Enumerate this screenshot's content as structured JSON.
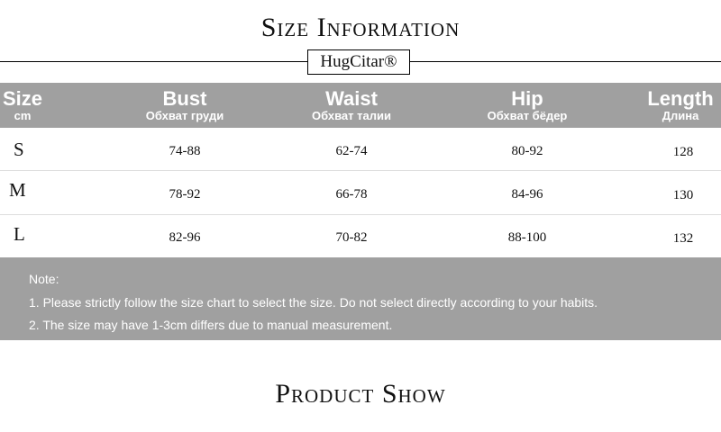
{
  "title": "Size Information",
  "brand": "HugCitar®",
  "table": {
    "headers": [
      {
        "main": "Size",
        "sub": "cm"
      },
      {
        "main": "Bust",
        "sub": "Обхват груди"
      },
      {
        "main": "Waist",
        "sub": "Обхват талии"
      },
      {
        "main": "Hip",
        "sub": "Обхват бёдер"
      },
      {
        "main": "Length",
        "sub": "Длина"
      }
    ],
    "rows": [
      {
        "size": "S",
        "bust": "74-88",
        "waist": "62-74",
        "hip": "80-92",
        "length": "128"
      },
      {
        "size": "M",
        "bust": "78-92",
        "waist": "66-78",
        "hip": "84-96",
        "length": "130"
      },
      {
        "size": "L",
        "bust": "82-96",
        "waist": "70-82",
        "hip": "88-100",
        "length": "132"
      }
    ]
  },
  "note": {
    "label": "Note:",
    "lines": [
      "1. Please strictly follow the size chart to select the size. Do not select directly according to your habits.",
      "2. The size may have 1-3cm differs due to manual measurement."
    ]
  },
  "section2_title": "Product Show",
  "colors": {
    "header_bg": "#a0a0a0",
    "text": "#111111"
  }
}
